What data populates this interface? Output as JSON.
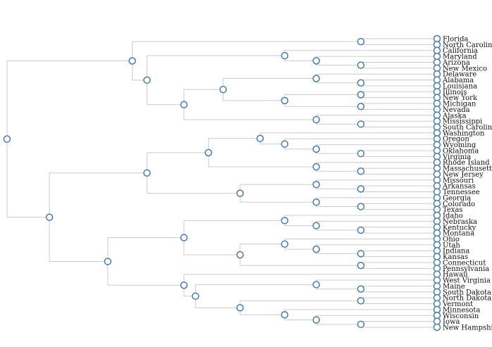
{
  "diagram": {
    "type": "dendrogram",
    "colors": {
      "link": "#cccccc",
      "node_stroke": "#4a7ab0",
      "node_fill": "#ffffff",
      "label": "#111111"
    },
    "tree": {
      "children": [
        {
          "children": [
            {
              "children": [
                {
                  "name": "Florida"
                },
                {
                  "name": "North Carolina"
                }
              ]
            },
            {
              "children": [
                {
                  "children": [
                    {
                      "name": "California"
                    },
                    {
                      "children": [
                        {
                          "name": "Maryland"
                        },
                        {
                          "children": [
                            {
                              "name": "Arizona"
                            },
                            {
                              "name": "New Mexico"
                            }
                          ]
                        }
                      ]
                    }
                  ]
                },
                {
                  "children": [
                    {
                      "children": [
                        {
                          "children": [
                            {
                              "name": "Delaware"
                            },
                            {
                              "children": [
                                {
                                  "name": "Alabama"
                                },
                                {
                                  "name": "Louisiana"
                                }
                              ]
                            }
                          ]
                        },
                        {
                          "children": [
                            {
                              "children": [
                                {
                                  "name": "Illinois"
                                },
                                {
                                  "name": "New York"
                                }
                              ]
                            },
                            {
                              "children": [
                                {
                                  "name": "Michigan"
                                },
                                {
                                  "name": "Nevada"
                                }
                              ]
                            }
                          ]
                        }
                      ]
                    },
                    {
                      "children": [
                        {
                          "name": "Alaska"
                        },
                        {
                          "children": [
                            {
                              "name": "Mississippi"
                            },
                            {
                              "name": "South Carolina"
                            }
                          ]
                        }
                      ]
                    }
                  ]
                }
              ]
            }
          ]
        },
        {
          "children": [
            {
              "children": [
                {
                  "children": [
                    {
                      "children": [
                        {
                          "name": "Washington"
                        },
                        {
                          "children": [
                            {
                              "name": "Oregon"
                            },
                            {
                              "children": [
                                {
                                  "name": "Wyoming"
                                },
                                {
                                  "children": [
                                    {
                                      "name": "Oklahoma"
                                    },
                                    {
                                      "name": "Virginia"
                                    }
                                  ]
                                }
                              ]
                            }
                          ]
                        }
                      ]
                    },
                    {
                      "children": [
                        {
                          "name": "Rhode Island"
                        },
                        {
                          "children": [
                            {
                              "name": "Massachusetts"
                            },
                            {
                              "name": "New Jersey"
                            }
                          ]
                        }
                      ]
                    }
                  ]
                },
                {
                  "children": [
                    {
                      "children": [
                        {
                          "name": "Missouri"
                        },
                        {
                          "children": [
                            {
                              "name": "Arkansas"
                            },
                            {
                              "name": "Tennessee"
                            }
                          ]
                        }
                      ]
                    },
                    {
                      "children": [
                        {
                          "name": "Georgia"
                        },
                        {
                          "children": [
                            {
                              "name": "Colorado"
                            },
                            {
                              "name": "Texas"
                            }
                          ]
                        }
                      ]
                    }
                  ]
                }
              ]
            },
            {
              "children": [
                {
                  "children": [
                    {
                      "children": [
                        {
                          "name": "Idaho"
                        },
                        {
                          "children": [
                            {
                              "name": "Nebraska"
                            },
                            {
                              "children": [
                                {
                                  "name": "Kentucky"
                                },
                                {
                                  "name": "Montana"
                                }
                              ]
                            }
                          ]
                        }
                      ]
                    },
                    {
                      "children": [
                        {
                          "children": [
                            {
                              "name": "Ohio"
                            },
                            {
                              "children": [
                                {
                                  "name": "Utah"
                                },
                                {
                                  "children": [
                                    {
                                      "name": "Indiana"
                                    },
                                    {
                                      "name": "Kansas"
                                    }
                                  ]
                                }
                              ]
                            }
                          ]
                        },
                        {
                          "children": [
                            {
                              "name": "Connecticut"
                            },
                            {
                              "name": "Pennsylvania"
                            }
                          ]
                        }
                      ]
                    }
                  ]
                },
                {
                  "children": [
                    {
                      "name": "Hawaii"
                    },
                    {
                      "children": [
                        {
                          "children": [
                            {
                              "name": "West Virginia"
                            },
                            {
                              "children": [
                                {
                                  "name": "Maine"
                                },
                                {
                                  "name": "South Dakota"
                                }
                              ]
                            }
                          ]
                        },
                        {
                          "children": [
                            {
                              "children": [
                                {
                                  "name": "North Dakota"
                                },
                                {
                                  "name": "Vermont"
                                }
                              ]
                            },
                            {
                              "children": [
                                {
                                  "name": "Minnesota"
                                },
                                {
                                  "children": [
                                    {
                                      "name": "Wisconsin"
                                    },
                                    {
                                      "children": [
                                        {
                                          "name": "Iowa"
                                        },
                                        {
                                          "name": "New Hampshire"
                                        }
                                      ]
                                    }
                                  ]
                                }
                              ]
                            }
                          ]
                        }
                      ]
                    }
                  ]
                }
              ]
            }
          ]
        }
      ]
    }
  }
}
